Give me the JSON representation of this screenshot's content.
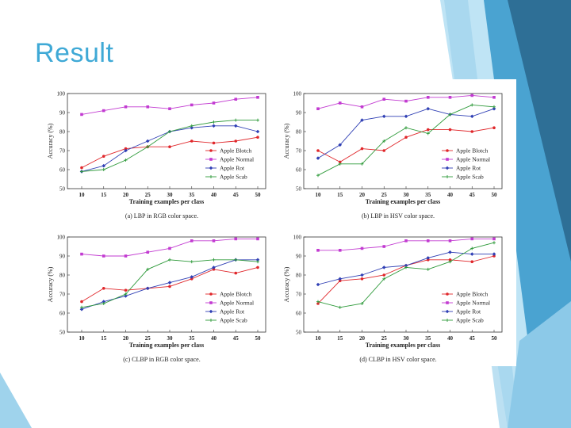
{
  "slide": {
    "title": "Result"
  },
  "theme": {
    "title_color": "#3fa9d6",
    "deco_dark": "#2e7ea6",
    "deco_mid": "#4aa3d1",
    "deco_light": "#9fd3ec"
  },
  "series_styles": [
    {
      "name": "Apple Blotch",
      "color": "#e0262a",
      "marker": "circle"
    },
    {
      "name": "Apple Normal",
      "color": "#c23ad1",
      "marker": "square"
    },
    {
      "name": "Apple Rot",
      "color": "#2f3fb4",
      "marker": "diamond"
    },
    {
      "name": "Apple Scab",
      "color": "#2e9a3a",
      "marker": "plus"
    }
  ],
  "chart_data": [
    {
      "type": "line",
      "caption": "(a) LBP in RGB color space.",
      "xlabel": "Training examples per class",
      "ylabel": "Accuracy (%)",
      "x": [
        10,
        15,
        20,
        25,
        30,
        35,
        40,
        45,
        50
      ],
      "xticks": [
        "10",
        "15",
        "20",
        "25",
        "30",
        "35",
        "40",
        "45",
        "50"
      ],
      "yticks": [
        "50",
        "60",
        "70",
        "80",
        "90",
        "100"
      ],
      "ylim": [
        50,
        100
      ],
      "series": [
        {
          "name": "Apple Blotch",
          "values": [
            61,
            67,
            71,
            72,
            72,
            75,
            74,
            75,
            77
          ]
        },
        {
          "name": "Apple Normal",
          "values": [
            89,
            91,
            93,
            93,
            92,
            94,
            95,
            97,
            98
          ]
        },
        {
          "name": "Apple Rot",
          "values": [
            59,
            62,
            70,
            75,
            80,
            82,
            83,
            83,
            80
          ]
        },
        {
          "name": "Apple Scab",
          "values": [
            59,
            60,
            65,
            72,
            80,
            83,
            85,
            86,
            86
          ]
        }
      ]
    },
    {
      "type": "line",
      "caption": "(b) LBP in HSV color space.",
      "xlabel": "Training examples per class",
      "ylabel": "Accuracy (%)",
      "x": [
        10,
        15,
        20,
        25,
        30,
        35,
        40,
        45,
        50
      ],
      "xticks": [
        "10",
        "15",
        "20",
        "25",
        "30",
        "35",
        "40",
        "45",
        "50"
      ],
      "yticks": [
        "50",
        "60",
        "70",
        "80",
        "90",
        "100"
      ],
      "ylim": [
        50,
        100
      ],
      "series": [
        {
          "name": "Apple Blotch",
          "values": [
            70,
            64,
            71,
            70,
            77,
            81,
            81,
            80,
            82
          ]
        },
        {
          "name": "Apple Normal",
          "values": [
            92,
            95,
            93,
            97,
            96,
            98,
            98,
            99,
            98
          ]
        },
        {
          "name": "Apple Rot",
          "values": [
            66,
            73,
            86,
            88,
            88,
            92,
            89,
            88,
            92
          ]
        },
        {
          "name": "Apple Scab",
          "values": [
            57,
            63,
            63,
            75,
            82,
            79,
            89,
            94,
            93
          ]
        }
      ]
    },
    {
      "type": "line",
      "caption": "(c) CLBP in RGB color space.",
      "xlabel": "Training examples per class",
      "ylabel": "Accuracy (%)",
      "x": [
        10,
        15,
        20,
        25,
        30,
        35,
        40,
        45,
        50
      ],
      "xticks": [
        "10",
        "15",
        "20",
        "25",
        "30",
        "35",
        "40",
        "45",
        "50"
      ],
      "yticks": [
        "50",
        "60",
        "70",
        "80",
        "90",
        "100"
      ],
      "ylim": [
        50,
        100
      ],
      "series": [
        {
          "name": "Apple Blotch",
          "values": [
            66,
            73,
            72,
            73,
            74,
            78,
            83,
            81,
            84
          ]
        },
        {
          "name": "Apple Normal",
          "values": [
            91,
            90,
            90,
            92,
            94,
            98,
            98,
            99,
            99
          ]
        },
        {
          "name": "Apple Rot",
          "values": [
            62,
            66,
            69,
            73,
            76,
            79,
            84,
            88,
            88
          ]
        },
        {
          "name": "Apple Scab",
          "values": [
            63,
            65,
            70,
            83,
            88,
            87,
            88,
            88,
            87
          ]
        }
      ]
    },
    {
      "type": "line",
      "caption": "(d) CLBP in HSV color space.",
      "xlabel": "Training examples per class",
      "ylabel": "Accuracy (%)",
      "x": [
        10,
        15,
        20,
        25,
        30,
        35,
        40,
        45,
        50
      ],
      "xticks": [
        "10",
        "15",
        "20",
        "25",
        "30",
        "35",
        "40",
        "45",
        "50"
      ],
      "yticks": [
        "50",
        "60",
        "70",
        "80",
        "90",
        "100"
      ],
      "ylim": [
        50,
        100
      ],
      "series": [
        {
          "name": "Apple Blotch",
          "values": [
            65,
            77,
            78,
            80,
            85,
            88,
            88,
            87,
            90
          ]
        },
        {
          "name": "Apple Normal",
          "values": [
            93,
            93,
            94,
            95,
            98,
            98,
            98,
            99,
            99
          ]
        },
        {
          "name": "Apple Rot",
          "values": [
            75,
            78,
            80,
            84,
            85,
            89,
            92,
            91,
            91
          ]
        },
        {
          "name": "Apple Scab",
          "values": [
            66,
            63,
            65,
            78,
            84,
            83,
            87,
            94,
            97
          ]
        }
      ]
    }
  ]
}
